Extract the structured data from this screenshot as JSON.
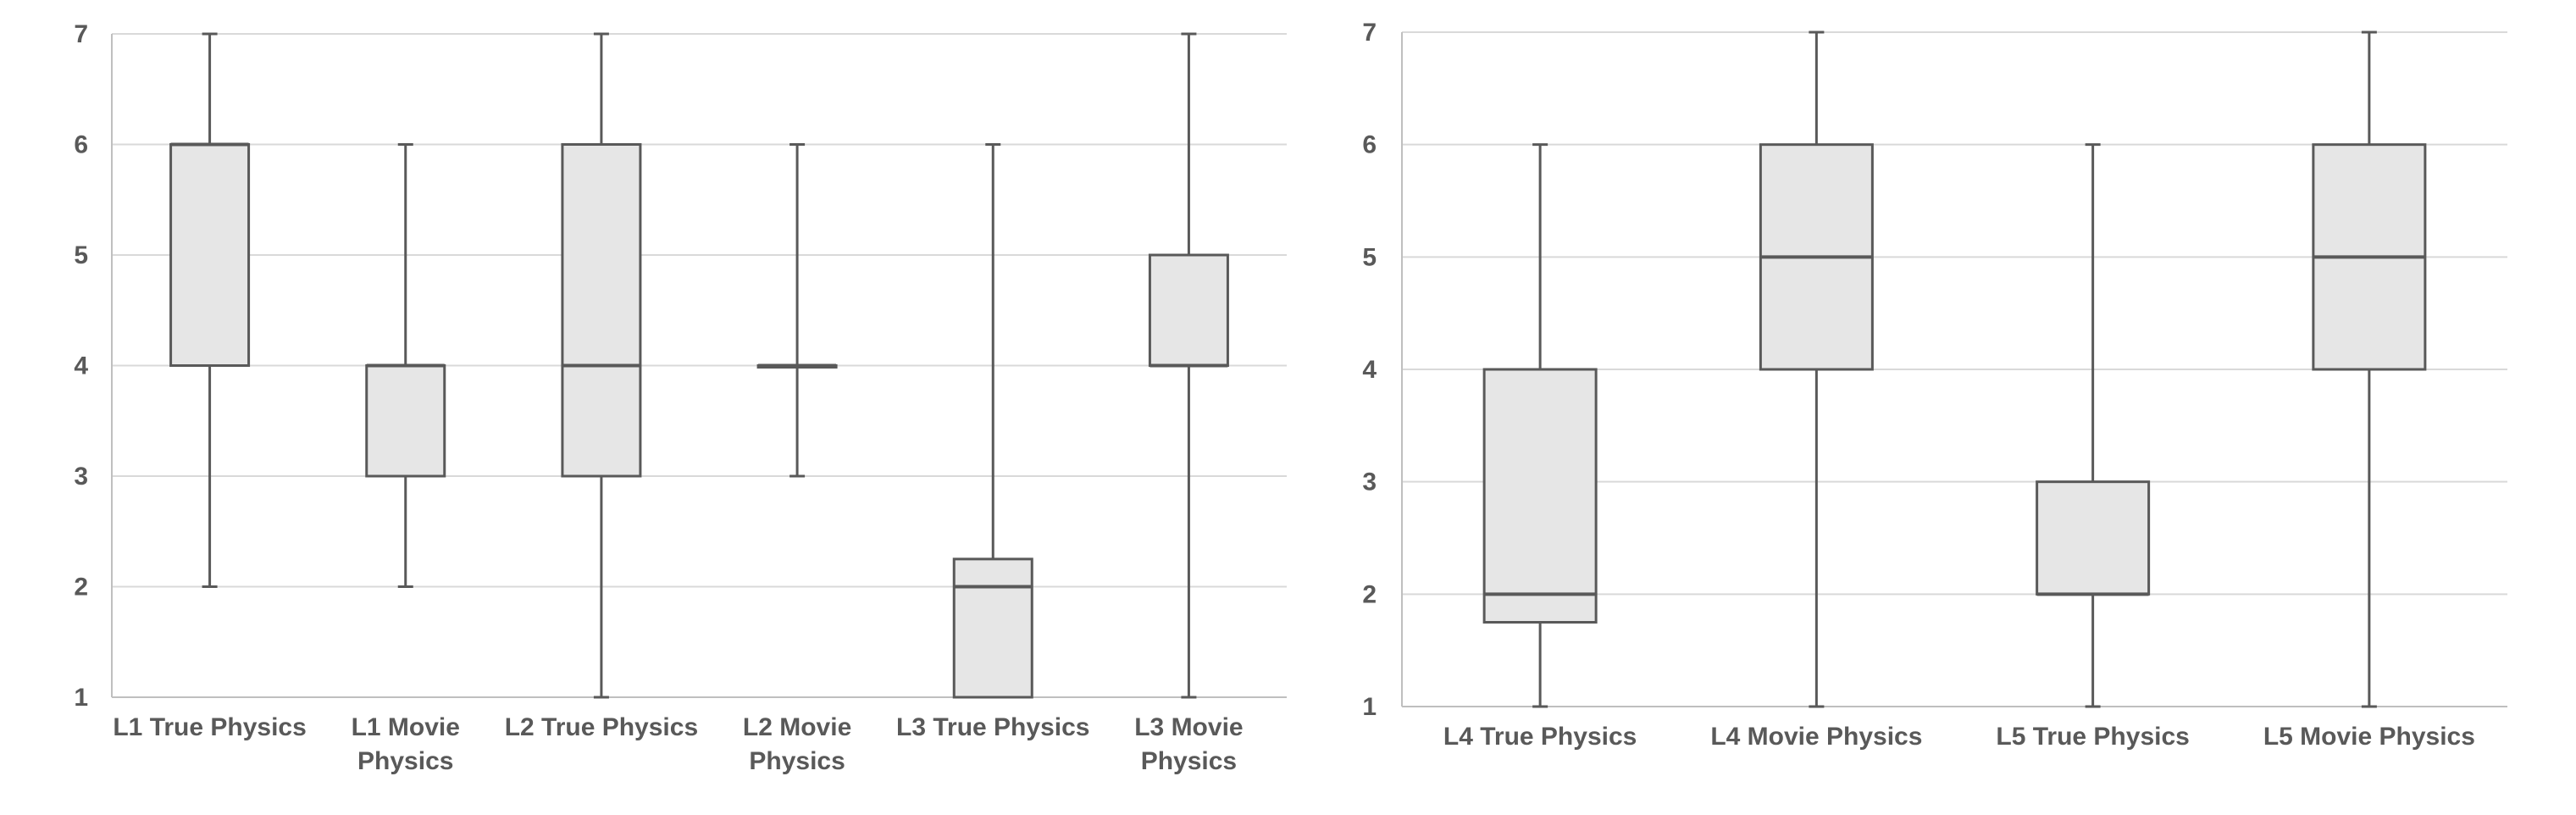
{
  "colors": {
    "box_fill": "#e6e6e6",
    "box_stroke": "#595959",
    "gridline": "#d9d9d9",
    "axis": "#bfbfbf",
    "text": "#595959"
  },
  "chart_data": [
    {
      "type": "box",
      "title": "",
      "xlabel": "",
      "ylabel": "",
      "ylim": [
        1,
        7
      ],
      "yticks": [
        "1",
        "2",
        "3",
        "4",
        "5",
        "6",
        "7"
      ],
      "grid": true,
      "categories": [
        {
          "lines": [
            "L1 True Physics"
          ],
          "min": 2,
          "q1": 4,
          "median": 6,
          "q3": 6,
          "max": 7
        },
        {
          "lines": [
            "L1 Movie",
            "Physics"
          ],
          "min": 2,
          "q1": 3,
          "median": 4,
          "q3": 4,
          "max": 6
        },
        {
          "lines": [
            "L2 True Physics"
          ],
          "min": 1,
          "q1": 3,
          "median": 4,
          "q3": 6,
          "max": 7
        },
        {
          "lines": [
            "L2 Movie",
            "Physics"
          ],
          "min": 3,
          "q1": 4,
          "median": 4,
          "q3": 4,
          "max": 6
        },
        {
          "lines": [
            "L3 True Physics"
          ],
          "min": 1,
          "q1": 1,
          "median": 2,
          "q3": 2.25,
          "max": 6
        },
        {
          "lines": [
            "L3 Movie",
            "Physics"
          ],
          "min": 1,
          "q1": 4,
          "median": 4,
          "q3": 5,
          "max": 7
        }
      ]
    },
    {
      "type": "box",
      "title": "",
      "xlabel": "",
      "ylabel": "",
      "ylim": [
        1,
        7
      ],
      "yticks": [
        "1",
        "2",
        "3",
        "4",
        "5",
        "6",
        "7"
      ],
      "grid": true,
      "categories": [
        {
          "lines": [
            "L4 True Physics"
          ],
          "min": 1,
          "q1": 1.75,
          "median": 2,
          "q3": 4,
          "max": 6
        },
        {
          "lines": [
            "L4 Movie Physics"
          ],
          "min": 1,
          "q1": 4,
          "median": 5,
          "q3": 6,
          "max": 7
        },
        {
          "lines": [
            "L5 True Physics"
          ],
          "min": 1,
          "q1": 2,
          "median": 2,
          "q3": 3,
          "max": 6
        },
        {
          "lines": [
            "L5 Movie Physics"
          ],
          "min": 1,
          "q1": 4,
          "median": 5,
          "q3": 6,
          "max": 7
        }
      ]
    }
  ]
}
